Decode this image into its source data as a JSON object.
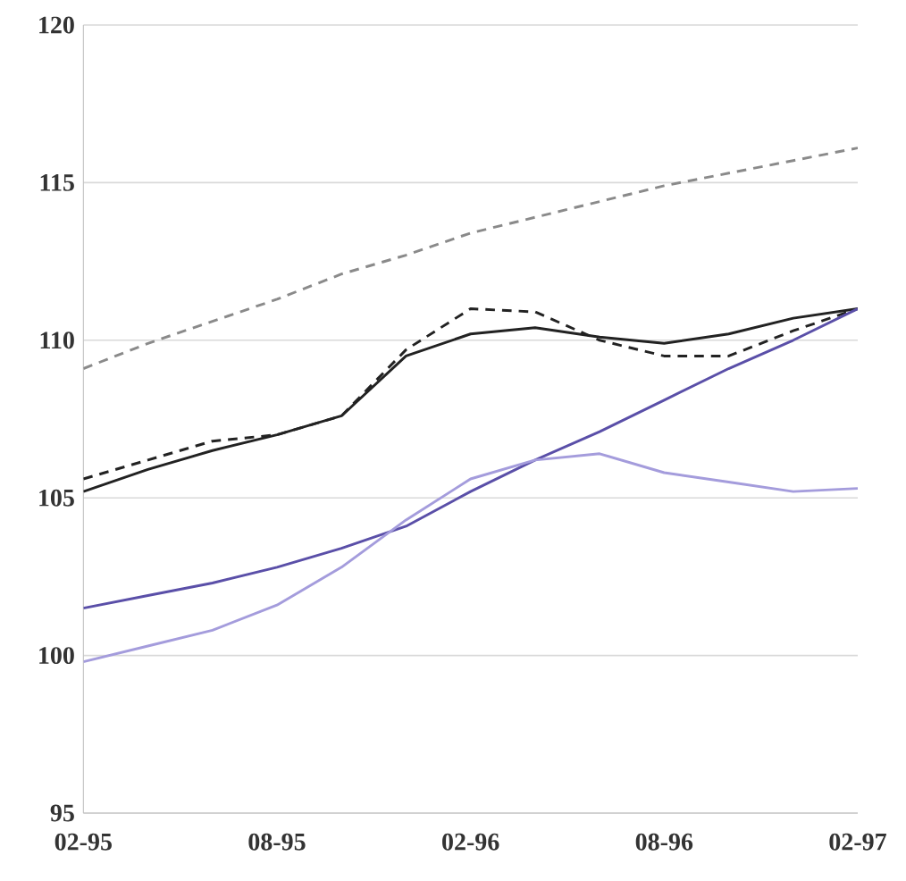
{
  "chart_data": {
    "type": "line",
    "x": [
      "1995-02",
      "1995-04",
      "1995-06",
      "1995-08",
      "1995-10",
      "1995-12",
      "1996-02",
      "1996-04",
      "1996-06",
      "1996-08",
      "1996-10",
      "1996-12",
      "1997-02"
    ],
    "series": [
      {
        "color": "#8a8a8a",
        "line_style": "dashed",
        "values": [
          109.1,
          109.9,
          110.6,
          111.3,
          112.1,
          112.7,
          113.4,
          113.9,
          114.4,
          114.9,
          115.3,
          115.7,
          116.1
        ]
      },
      {
        "color": "#222222",
        "line_style": "solid",
        "values": [
          105.2,
          105.9,
          106.5,
          107.0,
          107.6,
          109.5,
          110.2,
          110.4,
          110.1,
          109.9,
          110.2,
          110.7,
          111.0
        ]
      },
      {
        "color": "#222222",
        "line_style": "dashed",
        "values": [
          105.6,
          106.2,
          106.8,
          107.0,
          107.6,
          109.7,
          111.0,
          110.9,
          110.0,
          109.5,
          109.5,
          110.3,
          111.0
        ]
      },
      {
        "color": "#5a4fa8",
        "line_style": "solid",
        "values": [
          101.5,
          101.9,
          102.3,
          102.8,
          103.4,
          104.1,
          105.2,
          106.2,
          107.1,
          108.1,
          109.1,
          110.0,
          111.0
        ]
      },
      {
        "color": "#a49cdc",
        "line_style": "solid",
        "values": [
          99.8,
          100.3,
          100.8,
          101.6,
          102.8,
          104.3,
          105.6,
          106.2,
          106.4,
          105.8,
          105.5,
          105.2,
          105.3
        ]
      }
    ],
    "xlim": [
      "1995-02",
      "1997-02"
    ],
    "xticks": [
      {
        "value": "1995-02",
        "label": "02-95"
      },
      {
        "value": "1995-08",
        "label": "08-95"
      },
      {
        "value": "1996-02",
        "label": "02-96"
      },
      {
        "value": "1996-08",
        "label": "08-96"
      },
      {
        "value": "1997-02",
        "label": "02-97"
      }
    ],
    "ylim": [
      95,
      120
    ],
    "yticks": [
      95,
      100,
      105,
      110,
      115,
      120
    ],
    "grid": "y",
    "marker": "none"
  }
}
